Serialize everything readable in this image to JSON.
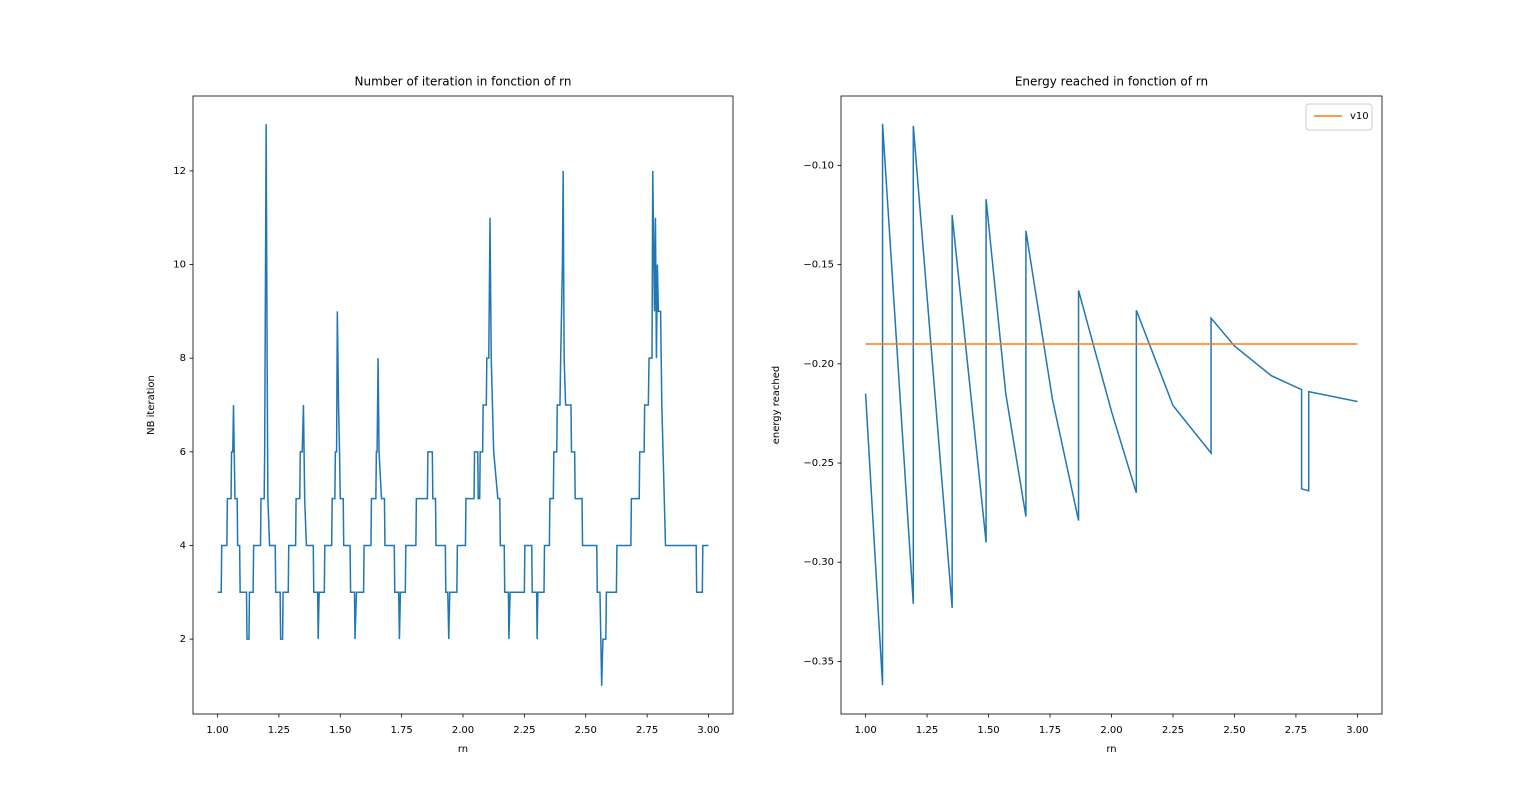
{
  "chart_data": [
    {
      "type": "line",
      "title": "Number of iteration in fonction of rn",
      "xlabel": "rn",
      "ylabel": "NB iteration",
      "xlim": [
        0.9,
        3.1
      ],
      "ylim": [
        0.4,
        13.6
      ],
      "xticks": [
        {
          "value": 1.0,
          "label": "1.00"
        },
        {
          "value": 1.25,
          "label": "1.25"
        },
        {
          "value": 1.5,
          "label": "1.50"
        },
        {
          "value": 1.75,
          "label": "1.75"
        },
        {
          "value": 2.0,
          "label": "2.00"
        },
        {
          "value": 2.25,
          "label": "2.25"
        },
        {
          "value": 2.5,
          "label": "2.50"
        },
        {
          "value": 2.75,
          "label": "2.75"
        },
        {
          "value": 3.0,
          "label": "3.00"
        }
      ],
      "yticks": [
        2,
        4,
        6,
        8,
        10,
        12
      ],
      "series": [
        {
          "color": "#1f77b4",
          "x": [
            1.0,
            1.015,
            1.017,
            1.038,
            1.04,
            1.055,
            1.057,
            1.062,
            1.065,
            1.068,
            1.071,
            1.08,
            1.082,
            1.09,
            1.092,
            1.118,
            1.12,
            1.128,
            1.13,
            1.145,
            1.147,
            1.175,
            1.177,
            1.19,
            1.192,
            1.198,
            1.202,
            1.205,
            1.212,
            1.235,
            1.237,
            1.255,
            1.257,
            1.265,
            1.267,
            1.288,
            1.29,
            1.318,
            1.32,
            1.335,
            1.337,
            1.345,
            1.35,
            1.355,
            1.362,
            1.39,
            1.392,
            1.408,
            1.41,
            1.414,
            1.435,
            1.437,
            1.465,
            1.467,
            1.478,
            1.48,
            1.485,
            1.488,
            1.493,
            1.497,
            1.5,
            1.512,
            1.514,
            1.54,
            1.542,
            1.558,
            1.56,
            1.566,
            1.595,
            1.597,
            1.625,
            1.627,
            1.645,
            1.647,
            1.65,
            1.654,
            1.658,
            1.668,
            1.68,
            1.682,
            1.72,
            1.722,
            1.738,
            1.741,
            1.745,
            1.765,
            1.767,
            1.808,
            1.81,
            1.855,
            1.857,
            1.875,
            1.877,
            1.888,
            1.89,
            1.928,
            1.93,
            1.938,
            1.942,
            1.946,
            1.975,
            1.977,
            2.01,
            2.012,
            2.045,
            2.047,
            2.06,
            2.062,
            2.068,
            2.07,
            2.08,
            2.082,
            2.095,
            2.097,
            2.105,
            2.11,
            2.115,
            2.12,
            2.125,
            2.142,
            2.15,
            2.152,
            2.168,
            2.17,
            2.185,
            2.187,
            2.192,
            2.25,
            2.252,
            2.28,
            2.282,
            2.3,
            2.302,
            2.305,
            2.33,
            2.332,
            2.352,
            2.354,
            2.368,
            2.37,
            2.382,
            2.384,
            2.395,
            2.398,
            2.405,
            2.408,
            2.412,
            2.418,
            2.44,
            2.442,
            2.455,
            2.457,
            2.485,
            2.487,
            2.545,
            2.547,
            2.558,
            2.565,
            2.57,
            2.582,
            2.584,
            2.625,
            2.627,
            2.684,
            2.686,
            2.718,
            2.72,
            2.738,
            2.74,
            2.755,
            2.758,
            2.77,
            2.773,
            2.78,
            2.784,
            2.788,
            2.792,
            2.796,
            2.805,
            2.81,
            2.815,
            2.82,
            2.825,
            2.95,
            2.952,
            2.975,
            2.977,
            3.0
          ],
          "values": [
            3,
            3,
            4,
            4,
            5,
            5,
            6,
            6,
            7,
            6,
            5,
            5,
            4,
            4,
            3,
            3,
            2,
            2,
            3,
            3,
            4,
            4,
            5,
            5,
            6,
            13,
            8,
            5,
            4,
            4,
            3,
            3,
            2,
            2,
            3,
            3,
            4,
            4,
            5,
            5,
            6,
            6,
            7,
            5,
            4,
            4,
            3,
            3,
            2,
            3,
            3,
            4,
            4,
            5,
            5,
            6,
            6,
            9,
            7,
            6,
            5,
            5,
            4,
            4,
            3,
            3,
            2,
            3,
            3,
            4,
            4,
            5,
            5,
            6,
            6,
            8,
            6,
            5,
            5,
            4,
            4,
            3,
            3,
            2,
            3,
            3,
            4,
            4,
            5,
            5,
            6,
            6,
            5,
            5,
            4,
            4,
            3,
            3,
            2,
            3,
            3,
            4,
            4,
            5,
            5,
            6,
            6,
            5,
            5,
            6,
            6,
            7,
            7,
            8,
            8,
            11,
            8,
            7,
            6,
            5,
            5,
            4,
            4,
            3,
            3,
            2,
            3,
            3,
            4,
            4,
            3,
            3,
            2,
            3,
            3,
            4,
            4,
            5,
            5,
            6,
            6,
            7,
            7,
            8,
            10,
            12,
            8,
            7,
            7,
            6,
            6,
            5,
            5,
            4,
            4,
            3,
            3,
            1,
            2,
            2,
            3,
            3,
            4,
            4,
            5,
            5,
            6,
            6,
            7,
            7,
            8,
            8,
            12,
            9,
            11,
            8,
            10,
            9,
            9,
            7,
            6,
            5,
            4,
            4,
            3,
            3,
            4,
            4
          ]
        }
      ]
    },
    {
      "type": "line",
      "title": "Energy reached in fonction of rn",
      "xlabel": "rn",
      "ylabel": "energy reached",
      "xlim": [
        0.9,
        3.1
      ],
      "ylim": [
        -0.3765,
        -0.065
      ],
      "xticks": [
        {
          "value": 1.0,
          "label": "1.00"
        },
        {
          "value": 1.25,
          "label": "1.25"
        },
        {
          "value": 1.5,
          "label": "1.50"
        },
        {
          "value": 1.75,
          "label": "1.75"
        },
        {
          "value": 2.0,
          "label": "2.00"
        },
        {
          "value": 2.25,
          "label": "2.25"
        },
        {
          "value": 2.5,
          "label": "2.50"
        },
        {
          "value": 2.75,
          "label": "2.75"
        },
        {
          "value": 3.0,
          "label": "3.00"
        }
      ],
      "yticks": [
        {
          "value": -0.35,
          "label": "−0.35"
        },
        {
          "value": -0.3,
          "label": "−0.30"
        },
        {
          "value": -0.25,
          "label": "−0.25"
        },
        {
          "value": -0.2,
          "label": "−0.20"
        },
        {
          "value": -0.15,
          "label": "−0.15"
        },
        {
          "value": -0.1,
          "label": "−0.10"
        }
      ],
      "legend": "upper right",
      "series": [
        {
          "color": "#1f77b4",
          "x": [
            1.0,
            1.069,
            1.069,
            1.194,
            1.194,
            1.352,
            1.352,
            1.49,
            1.49,
            1.57,
            1.652,
            1.652,
            1.76,
            1.866,
            1.866,
            2.0,
            2.101,
            2.101,
            2.25,
            2.405,
            2.405,
            2.5,
            2.65,
            2.773,
            2.773,
            2.802,
            2.802,
            3.0
          ],
          "values": [
            -0.215,
            -0.362,
            -0.079,
            -0.321,
            -0.08,
            -0.323,
            -0.125,
            -0.29,
            -0.117,
            -0.215,
            -0.277,
            -0.133,
            -0.218,
            -0.279,
            -0.163,
            -0.224,
            -0.265,
            -0.173,
            -0.221,
            -0.245,
            -0.177,
            -0.191,
            -0.206,
            -0.213,
            -0.263,
            -0.264,
            -0.214,
            -0.219
          ]
        },
        {
          "name": "v10",
          "color": "#ff7f0e",
          "x": [
            1.0,
            3.0
          ],
          "values": [
            -0.19,
            -0.19
          ]
        }
      ]
    }
  ]
}
